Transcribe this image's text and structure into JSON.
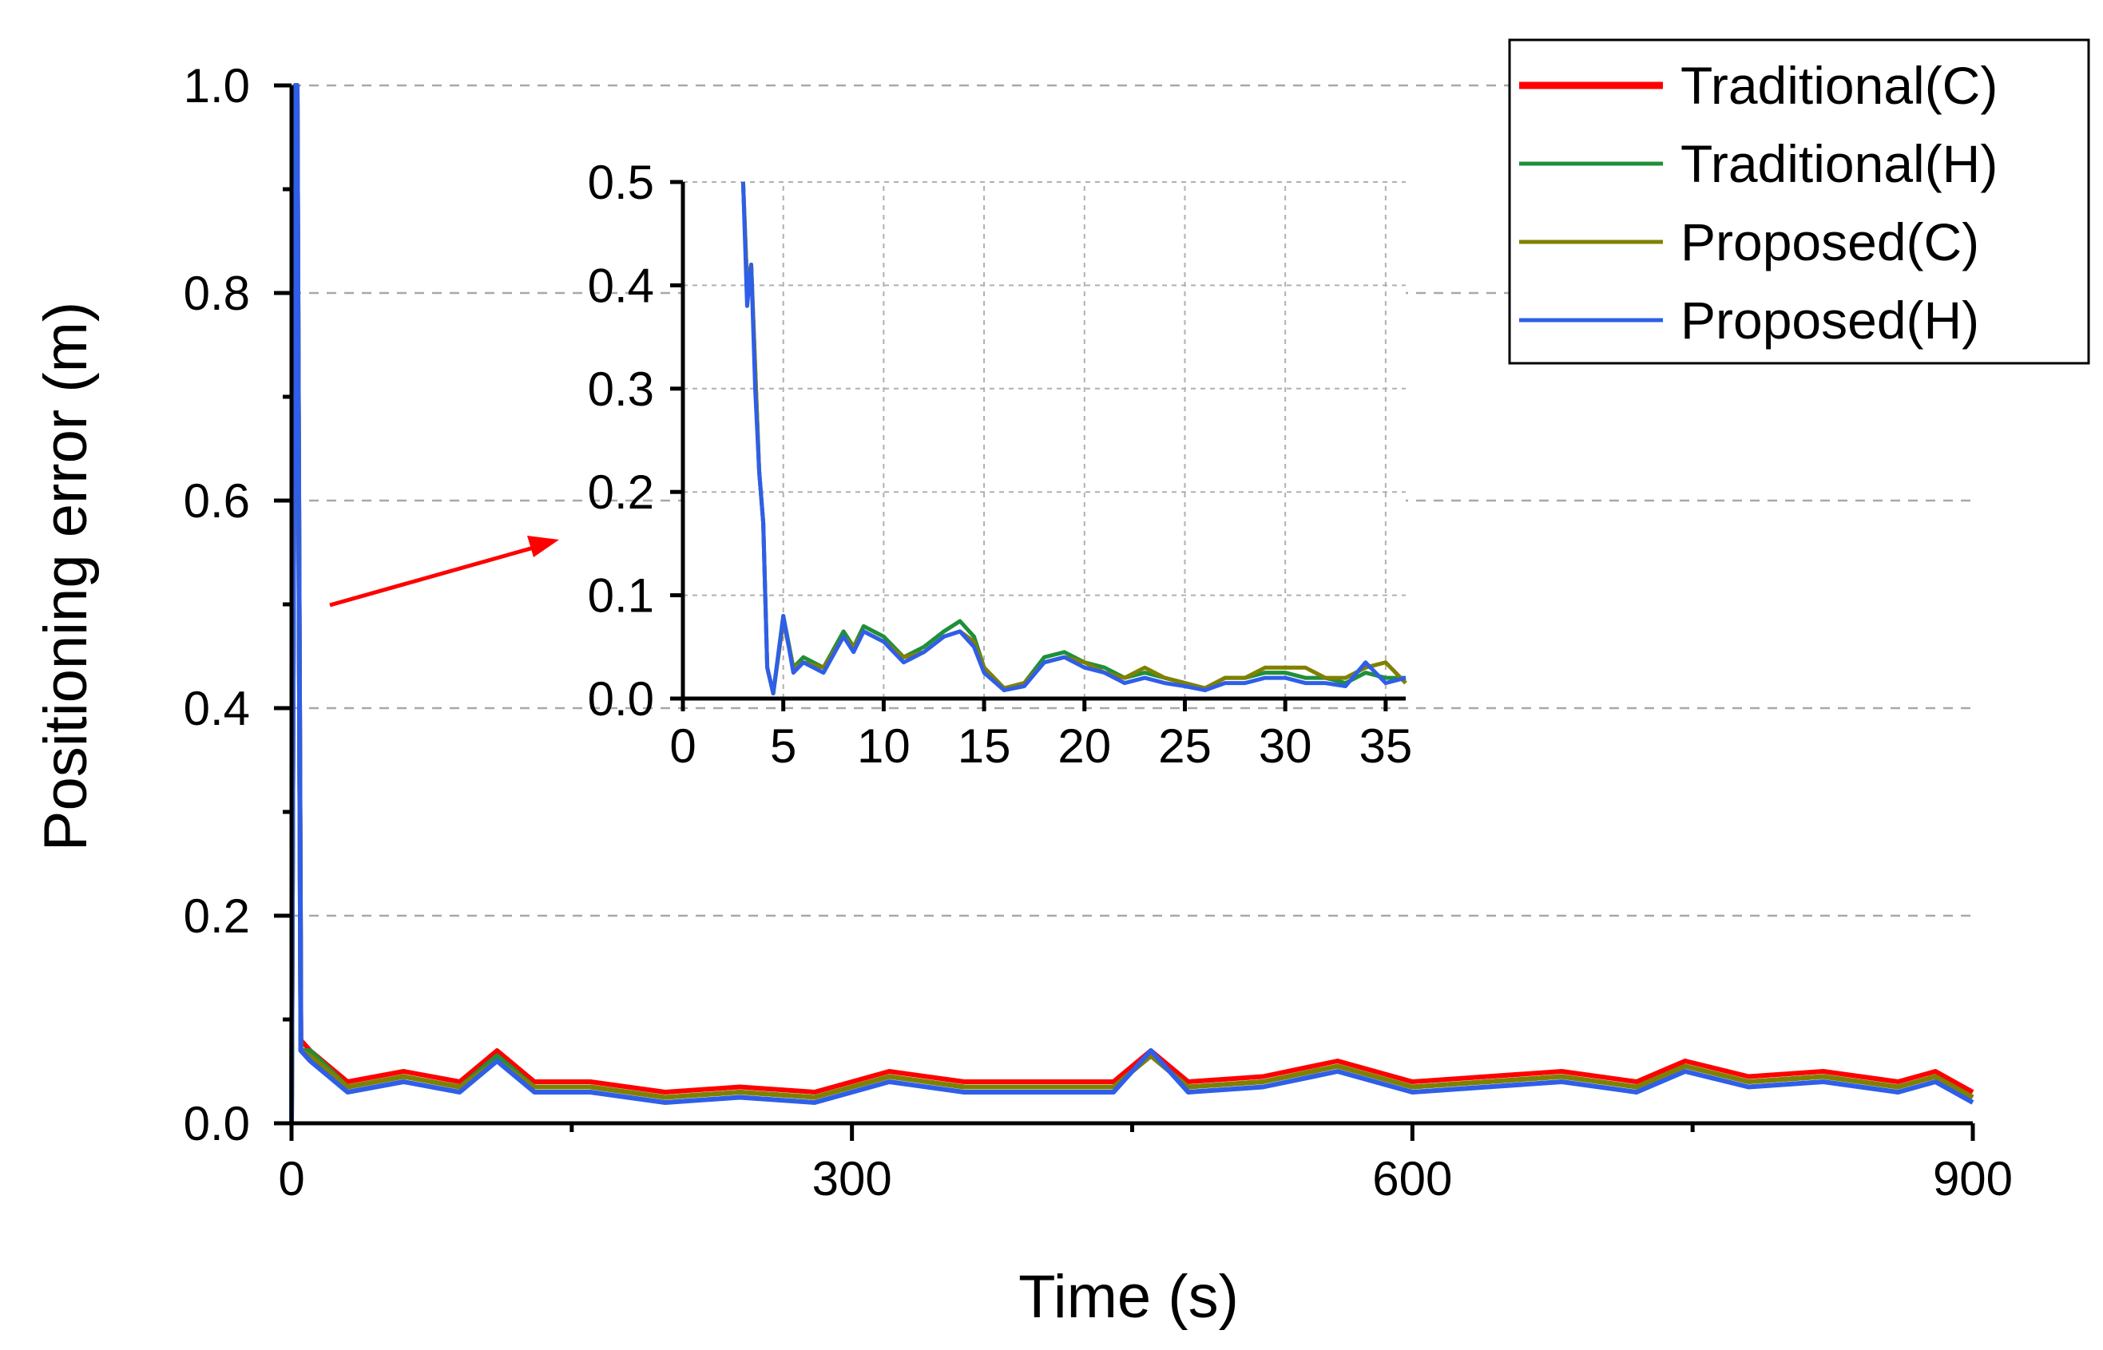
{
  "chart_data": [
    {
      "type": "line",
      "title": "",
      "xlabel": "Time (s)",
      "ylabel": "Positioning error (m)",
      "xlim": [
        0,
        900
      ],
      "ylim": [
        0,
        1.0
      ],
      "x_ticks": [
        "0",
        "300",
        "600",
        "900"
      ],
      "y_ticks": [
        "0.0",
        "0.2",
        "0.4",
        "0.6",
        "0.8",
        "1.0"
      ],
      "grid": true,
      "legend_position": "top-right",
      "series": [
        {
          "name": "Traditional(C)",
          "color": "#ff0000",
          "x": [
            0,
            2,
            3,
            5,
            10,
            30,
            60,
            90,
            110,
            130,
            160,
            200,
            240,
            280,
            300,
            320,
            360,
            400,
            440,
            460,
            480,
            520,
            560,
            600,
            640,
            680,
            720,
            746,
            780,
            820,
            860,
            880,
            900
          ],
          "values": [
            0,
            1.0,
            1.0,
            0.08,
            0.07,
            0.04,
            0.05,
            0.04,
            0.07,
            0.04,
            0.04,
            0.03,
            0.035,
            0.03,
            0.04,
            0.05,
            0.04,
            0.04,
            0.04,
            0.07,
            0.04,
            0.045,
            0.06,
            0.04,
            0.045,
            0.05,
            0.04,
            0.06,
            0.045,
            0.05,
            0.04,
            0.05,
            0.03
          ]
        },
        {
          "name": "Traditional(H)",
          "color": "#1f8f3a",
          "x": [
            0,
            2,
            3,
            5,
            10,
            30,
            60,
            90,
            110,
            130,
            160,
            200,
            240,
            280,
            300,
            320,
            360,
            400,
            440,
            460,
            480,
            520,
            560,
            600,
            640,
            680,
            720,
            746,
            780,
            820,
            860,
            880,
            900
          ],
          "values": [
            0,
            1.0,
            1.0,
            0.07,
            0.07,
            0.035,
            0.045,
            0.035,
            0.065,
            0.035,
            0.035,
            0.025,
            0.03,
            0.025,
            0.035,
            0.045,
            0.035,
            0.035,
            0.035,
            0.065,
            0.035,
            0.04,
            0.055,
            0.035,
            0.04,
            0.045,
            0.035,
            0.055,
            0.04,
            0.045,
            0.035,
            0.045,
            0.025
          ]
        },
        {
          "name": "Proposed(C)",
          "color": "#808000",
          "x": [
            0,
            2,
            3,
            5,
            10,
            30,
            60,
            90,
            110,
            130,
            160,
            200,
            240,
            280,
            300,
            320,
            360,
            400,
            440,
            460,
            480,
            520,
            560,
            600,
            640,
            680,
            720,
            746,
            780,
            820,
            860,
            880,
            900
          ],
          "values": [
            0,
            1.0,
            1.0,
            0.07,
            0.065,
            0.035,
            0.045,
            0.035,
            0.06,
            0.035,
            0.035,
            0.025,
            0.03,
            0.025,
            0.035,
            0.045,
            0.035,
            0.035,
            0.035,
            0.065,
            0.035,
            0.04,
            0.055,
            0.035,
            0.04,
            0.045,
            0.035,
            0.055,
            0.04,
            0.045,
            0.035,
            0.045,
            0.025
          ]
        },
        {
          "name": "Proposed(H)",
          "color": "#2f5ee8",
          "x": [
            0,
            2,
            3,
            5,
            10,
            30,
            60,
            90,
            110,
            130,
            160,
            200,
            240,
            280,
            300,
            320,
            360,
            400,
            440,
            460,
            480,
            520,
            560,
            600,
            640,
            680,
            720,
            746,
            780,
            820,
            860,
            880,
            900
          ],
          "values": [
            0,
            1.0,
            1.0,
            0.07,
            0.06,
            0.03,
            0.04,
            0.03,
            0.06,
            0.03,
            0.03,
            0.02,
            0.025,
            0.02,
            0.03,
            0.04,
            0.03,
            0.03,
            0.03,
            0.07,
            0.03,
            0.035,
            0.05,
            0.03,
            0.035,
            0.04,
            0.03,
            0.05,
            0.035,
            0.04,
            0.03,
            0.04,
            0.02
          ]
        }
      ]
    },
    {
      "type": "line",
      "title": "",
      "xlabel": "",
      "ylabel": "",
      "xlim": [
        0,
        36
      ],
      "ylim": [
        0,
        0.5
      ],
      "x_ticks": [
        "0",
        "5",
        "10",
        "15",
        "20",
        "25",
        "30",
        "35"
      ],
      "y_ticks": [
        "0.0",
        "0.1",
        "0.2",
        "0.3",
        "0.4",
        "0.5"
      ],
      "grid": true,
      "series": [
        {
          "name": "Traditional(H)",
          "color": "#1f8f3a",
          "x": [
            3,
            3.2,
            3.4,
            3.6,
            3.8,
            4.0,
            4.2,
            4.5,
            5.0,
            5.5,
            6,
            7,
            8,
            8.5,
            9,
            10,
            11,
            12,
            13,
            13.8,
            14.5,
            15,
            16,
            17,
            18,
            19,
            20,
            21,
            22,
            23,
            24,
            25,
            26,
            27,
            28,
            29,
            30,
            31,
            32,
            33,
            34,
            35,
            36
          ],
          "values": [
            0.5,
            0.4,
            0.42,
            0.32,
            0.22,
            0.17,
            0.03,
            0.005,
            0.08,
            0.03,
            0.04,
            0.03,
            0.065,
            0.05,
            0.07,
            0.06,
            0.04,
            0.05,
            0.065,
            0.075,
            0.06,
            0.03,
            0.01,
            0.015,
            0.04,
            0.045,
            0.035,
            0.03,
            0.02,
            0.025,
            0.02,
            0.015,
            0.01,
            0.02,
            0.02,
            0.025,
            0.025,
            0.02,
            0.02,
            0.015,
            0.025,
            0.02,
            0.02
          ]
        },
        {
          "name": "Proposed(C)",
          "color": "#808000",
          "x": [
            3,
            3.2,
            3.4,
            3.6,
            3.8,
            4.0,
            4.2,
            4.5,
            5.0,
            5.5,
            6,
            7,
            8,
            8.5,
            9,
            10,
            11,
            12,
            13,
            13.8,
            14.5,
            15,
            16,
            17,
            18,
            19,
            20,
            21,
            22,
            23,
            24,
            25,
            26,
            27,
            28,
            29,
            30,
            31,
            32,
            33,
            34,
            35,
            36
          ],
          "values": [
            0.5,
            0.4,
            0.42,
            0.32,
            0.22,
            0.17,
            0.03,
            0.005,
            0.075,
            0.03,
            0.035,
            0.03,
            0.06,
            0.05,
            0.065,
            0.055,
            0.04,
            0.045,
            0.06,
            0.065,
            0.055,
            0.03,
            0.01,
            0.015,
            0.035,
            0.04,
            0.035,
            0.025,
            0.02,
            0.03,
            0.02,
            0.015,
            0.01,
            0.02,
            0.02,
            0.03,
            0.03,
            0.03,
            0.02,
            0.02,
            0.03,
            0.035,
            0.015
          ]
        },
        {
          "name": "Proposed(H)",
          "color": "#2f5ee8",
          "x": [
            3,
            3.2,
            3.4,
            3.6,
            3.8,
            4.0,
            4.2,
            4.5,
            5.0,
            5.5,
            6,
            7,
            8,
            8.5,
            9,
            10,
            11,
            12,
            13,
            13.8,
            14.5,
            15,
            16,
            17,
            18,
            19,
            20,
            21,
            22,
            23,
            24,
            25,
            26,
            27,
            28,
            29,
            30,
            31,
            32,
            33,
            34,
            35,
            36
          ],
          "values": [
            0.5,
            0.38,
            0.42,
            0.3,
            0.22,
            0.17,
            0.03,
            0.005,
            0.08,
            0.025,
            0.035,
            0.025,
            0.06,
            0.045,
            0.065,
            0.055,
            0.035,
            0.045,
            0.06,
            0.065,
            0.05,
            0.025,
            0.008,
            0.012,
            0.035,
            0.04,
            0.03,
            0.025,
            0.015,
            0.02,
            0.015,
            0.012,
            0.008,
            0.015,
            0.015,
            0.02,
            0.02,
            0.015,
            0.015,
            0.012,
            0.035,
            0.015,
            0.02
          ]
        }
      ]
    }
  ]
}
